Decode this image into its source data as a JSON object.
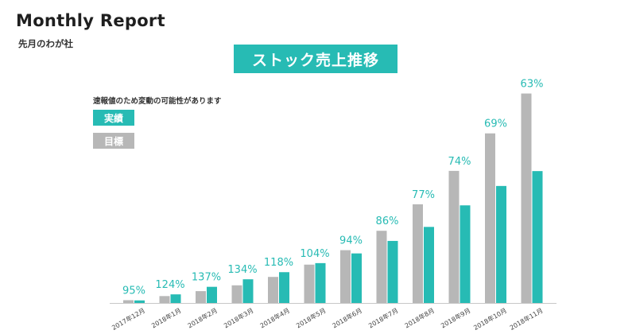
{
  "header": {
    "title": "Monthly Report",
    "subtitle": "先月のわが社"
  },
  "chart_data": {
    "type": "bar",
    "title": "ストック売上推移",
    "note": "速報値のため変動の可能性があります",
    "categories": [
      "2017年12月",
      "2018年1月",
      "2018年2月",
      "2018年3月",
      "2018年4月",
      "2018年5月",
      "2018年6月",
      "2018年7月",
      "2018年8月",
      "2018年9月",
      "2018年10月",
      "2018年11月"
    ],
    "series": [
      {
        "name": "目標",
        "color": "#b7b7b7",
        "values": [
          1.3,
          3.2,
          5.5,
          8.2,
          12.1,
          17.8,
          24.5,
          33.5,
          45.8,
          61.3,
          78.7,
          97.2
        ]
      },
      {
        "name": "実績",
        "color": "#27bbb4",
        "values": [
          1.2,
          4.0,
          7.5,
          11.0,
          14.3,
          18.5,
          23.0,
          28.8,
          35.3,
          45.3,
          54.3,
          61.2
        ]
      }
    ],
    "rate_labels": [
      "95%",
      "124%",
      "137%",
      "134%",
      "118%",
      "104%",
      "94%",
      "86%",
      "77%",
      "74%",
      "69%",
      "63%"
    ],
    "ylim": [
      0,
      100
    ],
    "grid": false,
    "legend": "top-left"
  }
}
